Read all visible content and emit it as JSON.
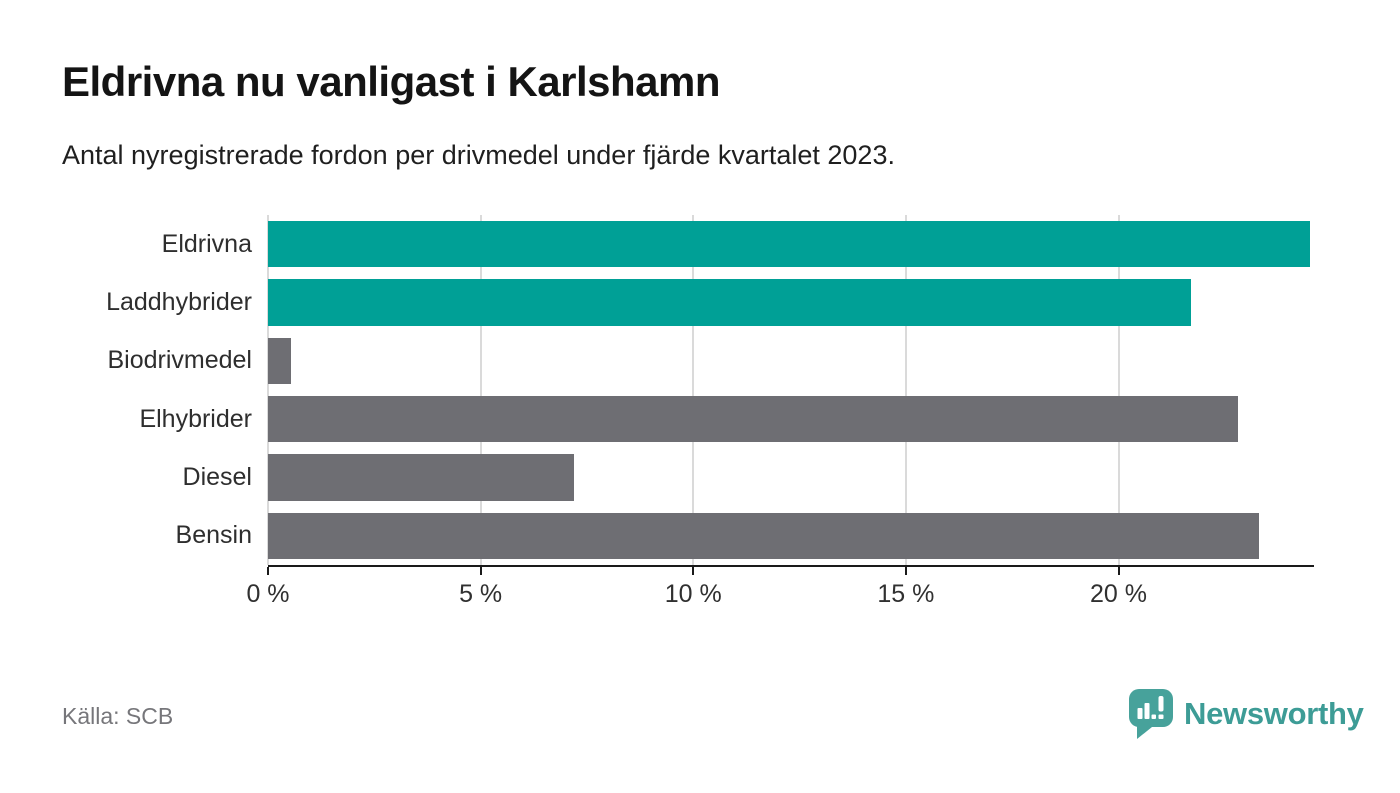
{
  "header": {
    "title": "Eldrivna nu vanligast i Karlshamn",
    "subtitle": "Antal nyregistrerade fordon per drivmedel under fjärde kvartalet 2023."
  },
  "chart_data": {
    "type": "bar",
    "orientation": "horizontal",
    "title": "Eldrivna nu vanligast i Karlshamn",
    "subtitle": "Antal nyregistrerade fordon per drivmedel under fjärde kvartalet 2023.",
    "categories": [
      "Eldrivna",
      "Laddhybrider",
      "Biodrivmedel",
      "Elhybrider",
      "Diesel",
      "Bensin"
    ],
    "values": [
      24.5,
      21.7,
      0.55,
      22.8,
      7.2,
      23.3
    ],
    "unit": "%",
    "bar_colors": [
      "#00a096",
      "#00a096",
      "#6e6e73",
      "#6e6e73",
      "#6e6e73",
      "#6e6e73"
    ],
    "highlight_color": "#00a096",
    "default_color": "#6e6e73",
    "xlabel": "",
    "ylabel": "",
    "xlim": [
      0,
      24.55
    ],
    "x_ticks": [
      0,
      5,
      10,
      15,
      20
    ],
    "x_tick_labels": [
      "0 %",
      "5 %",
      "10 %",
      "15 %",
      "20 %"
    ],
    "grid": "vertical",
    "legend": "none"
  },
  "footer": {
    "source": "Källa: SCB",
    "logo_text": "Newsworthy"
  },
  "colors": {
    "background": "#ffffff",
    "grid": "#dadada",
    "axis": "#1a1a1a",
    "category_label": "#2e2e2e",
    "tick_label": "#303030",
    "source_text": "#76767a",
    "logo_teal": "#3d9c96",
    "logo_icon_teal": "#47a29b"
  }
}
